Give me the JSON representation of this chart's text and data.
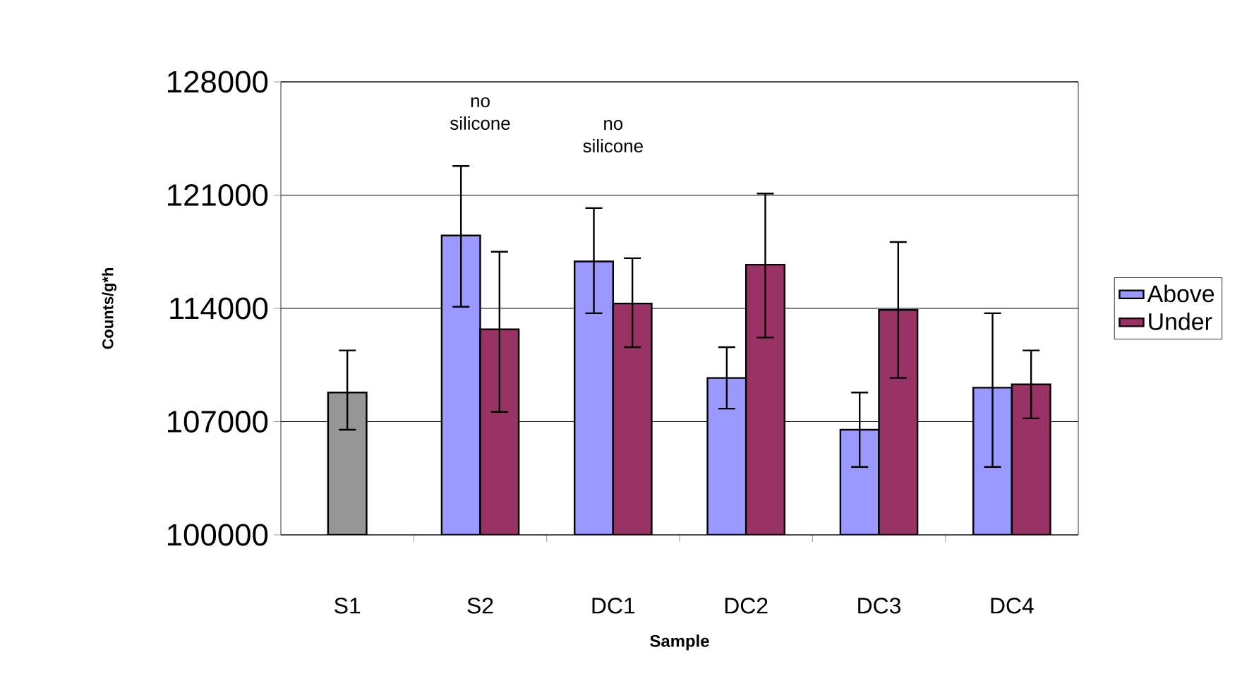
{
  "chart_data": {
    "type": "bar",
    "xlabel": "Sample",
    "ylabel": "Counts/g*h",
    "categories": [
      "S1",
      "S2",
      "DC1",
      "DC2",
      "DC3",
      "DC4"
    ],
    "series": [
      {
        "color": "#969696",
        "values": [
          108800,
          null,
          null,
          null,
          null,
          null
        ],
        "errors": [
          [
            106500,
            111400
          ],
          null,
          null,
          null,
          null,
          null
        ]
      },
      {
        "name": "Above",
        "color": "#9999ff",
        "values": [
          null,
          118500,
          116900,
          109700,
          106500,
          109100
        ],
        "errors": [
          null,
          [
            114100,
            122800
          ],
          [
            113700,
            120200
          ],
          [
            107800,
            111600
          ],
          [
            104200,
            108800
          ],
          [
            104200,
            113700
          ]
        ]
      },
      {
        "name": "Under",
        "color": "#993366",
        "values": [
          null,
          112700,
          114300,
          116700,
          113900,
          109300
        ],
        "errors": [
          null,
          [
            107600,
            117500
          ],
          [
            111600,
            117100
          ],
          [
            112200,
            121100
          ],
          [
            109700,
            118100
          ],
          [
            107200,
            111400
          ]
        ]
      }
    ],
    "ylim": [
      100000,
      128000
    ],
    "yticks": [
      100000,
      107000,
      114000,
      121000,
      128000
    ],
    "grid": "y",
    "legend": "right",
    "annotations": [
      "no silicone",
      "no silicone"
    ]
  }
}
